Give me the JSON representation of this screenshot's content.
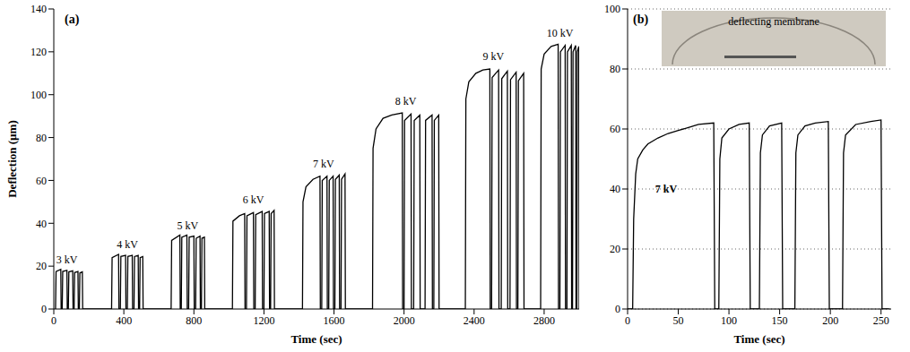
{
  "chart_data": [
    {
      "type": "line",
      "panel": "(a)",
      "xlabel": "Time (sec)",
      "ylabel": "Deflection (µm)",
      "color": "#000000",
      "grid": false,
      "xlim": [
        0,
        3000
      ],
      "xticks": [
        0,
        400,
        800,
        1200,
        1600,
        2000,
        2400,
        2800
      ],
      "ylim": [
        0,
        140
      ],
      "yticks": [
        0,
        20,
        40,
        60,
        80,
        100,
        120,
        140
      ],
      "x": [
        10,
        13,
        40,
        42,
        48,
        51,
        75,
        77,
        83,
        86,
        108,
        110,
        116,
        119,
        138,
        140,
        146,
        149,
        163,
        165,
        330,
        333,
        370,
        372,
        380,
        383,
        410,
        412,
        420,
        423,
        448,
        450,
        458,
        461,
        482,
        484,
        490,
        493,
        508,
        510,
        670,
        673,
        720,
        722,
        728,
        731,
        760,
        762,
        770,
        773,
        800,
        802,
        810,
        813,
        835,
        837,
        843,
        846,
        860,
        862,
        1020,
        1023,
        1060,
        1090,
        1092,
        1100,
        1103,
        1140,
        1142,
        1150,
        1153,
        1190,
        1192,
        1200,
        1203,
        1230,
        1232,
        1238,
        1241,
        1258,
        1260,
        1420,
        1423,
        1440,
        1480,
        1520,
        1522,
        1530,
        1533,
        1560,
        1562,
        1570,
        1573,
        1595,
        1597,
        1605,
        1608,
        1630,
        1632,
        1640,
        1643,
        1663,
        1665,
        1820,
        1823,
        1840,
        1880,
        1930,
        1990,
        1992,
        2000,
        2003,
        2040,
        2042,
        2055,
        2058,
        2090,
        2092,
        2120,
        2123,
        2160,
        2162,
        2170,
        2173,
        2198,
        2200,
        2350,
        2353,
        2370,
        2410,
        2450,
        2490,
        2492,
        2500,
        2503,
        2540,
        2542,
        2555,
        2558,
        2590,
        2592,
        2605,
        2608,
        2640,
        2642,
        2650,
        2653,
        2683,
        2685,
        2780,
        2783,
        2800,
        2840,
        2880,
        2882,
        2890,
        2893,
        2920,
        2922,
        2930,
        2933,
        2955,
        2957,
        2962,
        2965,
        2980,
        2982,
        2987,
        2989,
        2998,
        3000
      ],
      "values": [
        0,
        17.5,
        18.5,
        0,
        0,
        17.5,
        18,
        0,
        0,
        17.3,
        17.8,
        0,
        0,
        17,
        17.5,
        0,
        0,
        16.8,
        17.3,
        0,
        0,
        24,
        25.5,
        0,
        0,
        24.5,
        25,
        0,
        0,
        24.5,
        25,
        0,
        0,
        24.5,
        25,
        0,
        0,
        24,
        24.5,
        0,
        0,
        32,
        34.5,
        0,
        0,
        33.5,
        34.5,
        0,
        0,
        33.5,
        34,
        0,
        0,
        33,
        34,
        0,
        0,
        33,
        33.5,
        0,
        0,
        41,
        43.5,
        44.5,
        0,
        0,
        43.5,
        45,
        0,
        0,
        44,
        45.5,
        0,
        0,
        44.5,
        45.5,
        0,
        0,
        44.5,
        46,
        0,
        0,
        50,
        57,
        60.5,
        62,
        0,
        0,
        60,
        62,
        0,
        0,
        60,
        62,
        0,
        0,
        60.5,
        62.5,
        0,
        0,
        60.5,
        63,
        0,
        0,
        75,
        84,
        89,
        90.5,
        91.5,
        0,
        0,
        88,
        91,
        0,
        0,
        88,
        90.5,
        0,
        0,
        88,
        90.5,
        0,
        0,
        88,
        90.5,
        0,
        0,
        98,
        106,
        110,
        111.5,
        112,
        0,
        0,
        108,
        111.5,
        0,
        0,
        107.5,
        111,
        0,
        0,
        107,
        110.5,
        0,
        0,
        106.5,
        110,
        0,
        0,
        112,
        119,
        122.5,
        123.5,
        0,
        0,
        120,
        123,
        0,
        0,
        120,
        123,
        0,
        0,
        120,
        123,
        0,
        0,
        120,
        122.5,
        0
      ],
      "annotations": [
        {
          "text": "3 kV",
          "x": 75,
          "y": 23
        },
        {
          "text": "4 kV",
          "x": 420,
          "y": 30
        },
        {
          "text": "5 kV",
          "x": 765,
          "y": 39
        },
        {
          "text": "6 kV",
          "x": 1140,
          "y": 51
        },
        {
          "text": "7 kV",
          "x": 1540,
          "y": 68
        },
        {
          "text": "8 kV",
          "x": 2010,
          "y": 97
        },
        {
          "text": "9 kV",
          "x": 2510,
          "y": 118
        },
        {
          "text": "10 kV",
          "x": 2890,
          "y": 129
        }
      ]
    },
    {
      "type": "line",
      "panel": "(b)",
      "xlabel": "Time (sec)",
      "color": "#000000",
      "grid": true,
      "xlim": [
        0,
        260
      ],
      "xticks": [
        0,
        50,
        100,
        150,
        200,
        250
      ],
      "ylim": [
        0,
        100
      ],
      "yticks": [
        0,
        20,
        40,
        60,
        80,
        100
      ],
      "x": [
        0,
        5,
        6,
        8,
        10,
        15,
        20,
        30,
        40,
        50,
        60,
        70,
        85,
        86,
        90,
        91,
        93,
        100,
        110,
        120,
        121,
        130,
        131,
        133,
        140,
        152,
        153,
        165,
        166,
        168,
        175,
        185,
        198,
        199,
        212,
        213,
        215,
        225,
        240,
        250,
        251,
        258
      ],
      "values": [
        0,
        0,
        30,
        45,
        50,
        53,
        55,
        57,
        58.5,
        59.5,
        60.5,
        61.5,
        62,
        0,
        0,
        50,
        57,
        60,
        61.5,
        62,
        0,
        0,
        52,
        58,
        61,
        62,
        0,
        0,
        52,
        58,
        61,
        62,
        62.5,
        0,
        0,
        52,
        58,
        61.5,
        62.5,
        63,
        0,
        0
      ],
      "annotations": [
        {
          "text": "7 kV",
          "x": 38,
          "y": 40
        }
      ],
      "inset": {
        "label": "deflecting membrane"
      }
    }
  ]
}
